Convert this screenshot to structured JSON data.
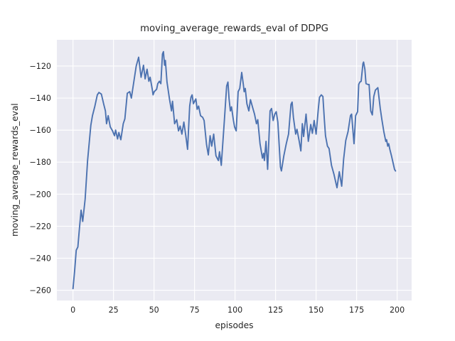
{
  "chart_data": {
    "type": "line",
    "title": "moving_average_rewards_eval of DDPG",
    "xlabel": "episodes",
    "ylabel": "moving_average_rewards_eval",
    "xlim": [
      -9.95,
      208.95
    ],
    "ylim": [
      -266.4,
      -103.6
    ],
    "xticks": [
      0,
      25,
      50,
      75,
      100,
      125,
      150,
      175,
      200
    ],
    "yticks": [
      -260,
      -240,
      -220,
      -200,
      -180,
      -160,
      -140,
      -120
    ],
    "grid": true,
    "legend": null,
    "style": {
      "fig_bg": "#ffffff",
      "axes_bg": "#eaeaf2",
      "grid_color": "#ffffff",
      "line_color": "#4c72b0",
      "text_color": "#262626",
      "line_width": 1.9,
      "grid_width": 1.15
    },
    "series": [
      {
        "name": "moving_average_rewards_eval",
        "x": [
          0,
          1,
          2,
          3,
          4,
          5,
          6,
          7.5,
          9,
          10,
          11,
          12,
          13.5,
          15,
          16,
          17.5,
          19,
          20,
          20.7,
          21.7,
          23,
          24.4,
          25.6,
          26.3,
          27.5,
          28.3,
          29.5,
          31,
          32,
          33.5,
          35,
          36,
          37.5,
          39,
          40.5,
          42,
          43.5,
          44.5,
          45.7,
          46.8,
          47.6,
          48.9,
          49.4,
          50.1,
          51.6,
          52.3,
          53.3,
          54.2,
          55.2,
          55.8,
          56.5,
          57,
          58,
          59.6,
          60.8,
          61.4,
          62.7,
          64,
          65.1,
          66.1,
          67.2,
          68.4,
          69.6,
          70.7,
          72,
          72.8,
          73.5,
          74.3,
          75.8,
          76.6,
          77.5,
          78.7,
          80,
          80.9,
          82.4,
          83.5,
          84.6,
          85.6,
          86.8,
          88.2,
          89.7,
          90.4,
          91.5,
          93.4,
          94.8,
          95.6,
          96.3,
          97.1,
          97.8,
          99,
          99.7,
          100.7,
          101.9,
          102.9,
          104.1,
          105.1,
          105.6,
          106.3,
          107.3,
          108.5,
          109.5,
          110.6,
          112,
          113.2,
          114,
          115.4,
          116.9,
          117.6,
          118.1,
          119.1,
          120.1,
          121.6,
          122.5,
          123.5,
          124.5,
          125.4,
          126.4,
          128,
          128.6,
          130.1,
          131.6,
          133,
          134.5,
          135.2,
          136,
          137.4,
          138.2,
          139.6,
          140.6,
          141.5,
          142.3,
          143.8,
          145.2,
          146.7,
          147.7,
          148.8,
          150,
          151.4,
          152.1,
          153.2,
          154.2,
          155.1,
          155.8,
          157,
          158,
          159.5,
          161,
          162.9,
          164.3,
          165.8,
          167,
          168.3,
          169.7,
          171.2,
          171.9,
          173.4,
          174.4,
          175.6,
          176.3,
          177,
          177.8,
          178.9,
          179.3,
          180.1,
          180.8,
          182,
          182.7,
          183.7,
          184.7,
          185.6,
          186.6,
          188.1,
          189.6,
          190.6,
          191.8,
          193,
          193.5,
          194.2,
          194.8,
          195.5,
          196.5,
          197.4,
          198.4,
          199
        ],
        "y": [
          -259,
          -248,
          -235,
          -233,
          -221,
          -210,
          -217,
          -203,
          -179,
          -168,
          -157,
          -151,
          -145,
          -138,
          -136.5,
          -137.5,
          -144,
          -148,
          -156,
          -151,
          -158,
          -160.5,
          -163.5,
          -160,
          -165.5,
          -161.5,
          -166,
          -156,
          -153,
          -137,
          -136,
          -140,
          -130,
          -120,
          -114.5,
          -127,
          -119.5,
          -128,
          -122,
          -129.5,
          -127,
          -134.5,
          -138,
          -136,
          -134.5,
          -131,
          -129.5,
          -131,
          -112.5,
          -111,
          -119.5,
          -116.5,
          -130,
          -141,
          -148,
          -142,
          -156,
          -153.5,
          -160.5,
          -157.5,
          -162.5,
          -155,
          -163.5,
          -172,
          -145,
          -139.5,
          -138,
          -143.5,
          -140.5,
          -147,
          -145,
          -151,
          -152,
          -154,
          -169,
          -175.5,
          -163.5,
          -170,
          -162.5,
          -176,
          -179,
          -173.5,
          -182,
          -154,
          -132.5,
          -130,
          -140.5,
          -148,
          -145.5,
          -154,
          -158,
          -160.5,
          -136,
          -134,
          -124,
          -131.5,
          -136,
          -134,
          -143.5,
          -148,
          -141,
          -145,
          -150,
          -156,
          -153.5,
          -168.5,
          -177.5,
          -174.5,
          -179,
          -167,
          -184.5,
          -148,
          -146.5,
          -154,
          -150,
          -148.5,
          -155,
          -183,
          -185.5,
          -176,
          -168.5,
          -162.5,
          -144,
          -142.5,
          -152,
          -162.5,
          -159.5,
          -167,
          -173,
          -156,
          -164,
          -150,
          -167,
          -156.5,
          -162,
          -154,
          -162.5,
          -146.5,
          -139.5,
          -138,
          -139,
          -153.5,
          -163.5,
          -170,
          -171.5,
          -182,
          -187.5,
          -196,
          -186,
          -195,
          -178,
          -166.5,
          -161,
          -151,
          -150,
          -168.5,
          -151,
          -148.5,
          -131.5,
          -130,
          -129.5,
          -118.5,
          -117.5,
          -122,
          -131,
          -131.5,
          -131.5,
          -148,
          -150.5,
          -139,
          -135,
          -133.5,
          -146.5,
          -153.5,
          -161,
          -167,
          -166,
          -170,
          -168.5,
          -172,
          -176,
          -180,
          -184.5,
          -185.5
        ]
      }
    ]
  }
}
